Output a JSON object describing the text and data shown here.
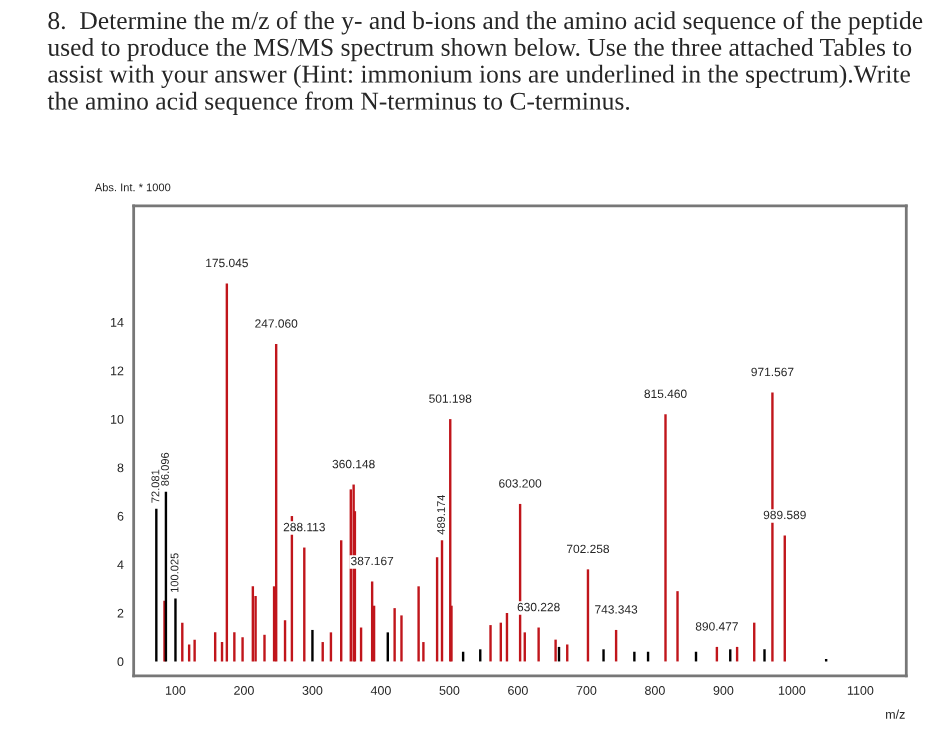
{
  "chart_data": {
    "type": "bar",
    "title": "8.  Determine the m/z of the y- and b-ions and the amino acid sequence of the peptide used to produce the MS/MS spectrum shown below. Use the three attached Tables to assist with your answer (Hint: immonium ions are underlined in the spectrum).Write the amino acid sequence from N-terminus to C-terminus.",
    "xlabel": "m/z",
    "ylabel": "Abs. Int. * 1000",
    "series": [
      {
        "color": "#c0151b",
        "x": [
          84,
          110,
          120,
          128,
          158,
          168,
          175.045,
          186,
          198,
          213,
          217,
          230,
          244,
          247.06,
          260,
          270,
          288.113,
          315,
          327,
          342,
          356,
          360.148,
          362,
          371,
          387.167,
          390,
          420,
          430,
          455,
          462,
          482,
          489.174,
          501.198,
          503,
          560,
          575,
          584,
          603.2,
          610,
          630.228,
          655,
          672,
          702.258,
          743.343,
          815.46,
          833,
          890.477,
          920,
          945,
          971.567,
          989.589
        ],
        "values": [
          2.5,
          1.6,
          0.7,
          0.9,
          1.2,
          0.8,
          15.6,
          1.2,
          1.0,
          3.1,
          2.7,
          1.1,
          3.1,
          13.1,
          1.7,
          6.0,
          4.7,
          0.8,
          1.2,
          5.0,
          7.1,
          7.3,
          6.2,
          1.4,
          3.3,
          2.3,
          2.2,
          1.9,
          3.1,
          0.8,
          4.3,
          5.0,
          10.0,
          2.3,
          1.5,
          1.6,
          2.0,
          6.5,
          1.2,
          1.4,
          0.9,
          0.7,
          3.8,
          1.3,
          10.2,
          2.9,
          0.6,
          0.6,
          1.6,
          11.1,
          5.2
        ]
      },
      {
        "color": "#000000",
        "x": [
          72.081,
          86.096,
          100.025,
          300,
          410,
          520,
          545,
          660,
          725,
          770,
          790,
          860,
          910,
          960,
          1050
        ],
        "values": [
          6.3,
          7.0,
          2.6,
          1.3,
          1.2,
          0.4,
          0.5,
          0.6,
          0.5,
          0.4,
          0.4,
          0.4,
          0.5,
          0.5,
          0.1
        ]
      }
    ],
    "annotations": [
      {
        "text": "72.081",
        "x": 72.081,
        "y": 6.3
      },
      {
        "text": "86.096",
        "x": 86.096,
        "y": 7.0
      },
      {
        "text": "100.025",
        "x": 100.025,
        "y": 2.6
      },
      {
        "text": "175.045",
        "x": 175.045,
        "y": 15.6
      },
      {
        "text": "247.060",
        "x": 247.06,
        "y": 13.1
      },
      {
        "text": "288.113",
        "x": 288.113,
        "y": 4.7
      },
      {
        "text": "360.148",
        "x": 360.148,
        "y": 7.3
      },
      {
        "text": "387.167",
        "x": 387.167,
        "y": 3.3
      },
      {
        "text": "489.174",
        "x": 489.174,
        "y": 5.0
      },
      {
        "text": "501.198",
        "x": 501.198,
        "y": 10.0
      },
      {
        "text": "603.200",
        "x": 603.2,
        "y": 6.5
      },
      {
        "text": "630.228",
        "x": 630.228,
        "y": 1.4
      },
      {
        "text": "702.258",
        "x": 702.258,
        "y": 3.8
      },
      {
        "text": "743.343",
        "x": 743.343,
        "y": 1.3
      },
      {
        "text": "815.460",
        "x": 815.46,
        "y": 10.2
      },
      {
        "text": "890.477",
        "x": 890.477,
        "y": 0.6
      },
      {
        "text": "971.567",
        "x": 971.567,
        "y": 11.1
      },
      {
        "text": "989.589",
        "x": 989.589,
        "y": 5.2
      }
    ],
    "xlim": [
      39,
      1167
    ],
    "xticks": [
      100,
      200,
      300,
      400,
      500,
      600,
      700,
      800,
      900,
      1000,
      1100
    ],
    "ylim": [
      -0.6,
      18.8
    ],
    "yticks": [
      0,
      2,
      4,
      6,
      8,
      10,
      12,
      14
    ],
    "grid": false,
    "legend": false
  }
}
